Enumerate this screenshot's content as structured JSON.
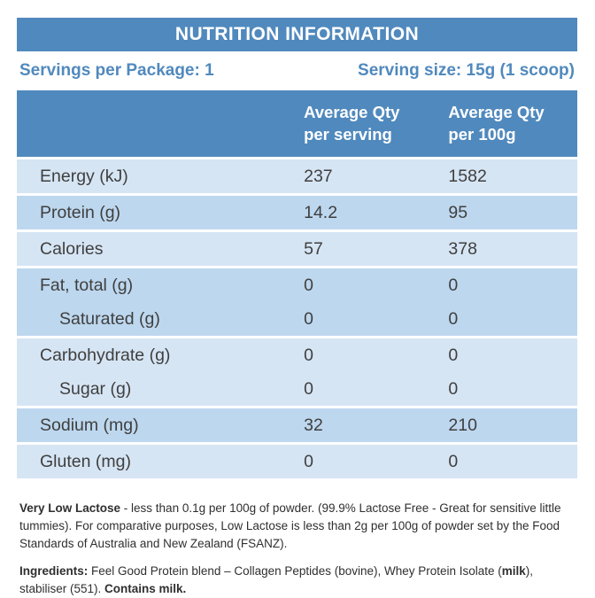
{
  "title": "NUTRITION INFORMATION",
  "serving_info": {
    "servings_per_package": "Servings per Package: 1",
    "serving_size": "Serving size: 15g (1 scoop)"
  },
  "colors": {
    "primary_blue": "#5089bd",
    "row_light": "#d6e5f4",
    "row_dark": "#bdd7ee",
    "text_dark": "#3f3f3f"
  },
  "table": {
    "column_headers": [
      {
        "line1": "Average Qty",
        "line2": "per serving"
      },
      {
        "line1": "Average Qty",
        "line2": "per 100g"
      }
    ],
    "bands": [
      {
        "shade": "light",
        "rows": [
          {
            "label": "Energy (kJ)",
            "per_serving": "237",
            "per_100g": "1582",
            "indent": false
          }
        ]
      },
      {
        "shade": "dark",
        "rows": [
          {
            "label": "Protein (g)",
            "per_serving": "14.2",
            "per_100g": "95",
            "indent": false
          }
        ]
      },
      {
        "shade": "light",
        "rows": [
          {
            "label": "Calories",
            "per_serving": "57",
            "per_100g": "378",
            "indent": false
          }
        ]
      },
      {
        "shade": "dark",
        "rows": [
          {
            "label": "Fat, total (g)",
            "per_serving": "0",
            "per_100g": "0",
            "indent": false
          },
          {
            "label": "Saturated (g)",
            "per_serving": "0",
            "per_100g": "0",
            "indent": true
          }
        ]
      },
      {
        "shade": "light",
        "rows": [
          {
            "label": "Carbohydrate (g)",
            "per_serving": "0",
            "per_100g": "0",
            "indent": false
          },
          {
            "label": "Sugar (g)",
            "per_serving": "0",
            "per_100g": "0",
            "indent": true
          }
        ]
      },
      {
        "shade": "dark",
        "rows": [
          {
            "label": "Sodium (mg)",
            "per_serving": "32",
            "per_100g": "210",
            "indent": false
          }
        ]
      },
      {
        "shade": "light",
        "rows": [
          {
            "label": "Gluten (mg)",
            "per_serving": "0",
            "per_100g": "0",
            "indent": false
          }
        ]
      }
    ]
  },
  "footnotes": [
    {
      "segments": [
        {
          "text": "Very Low Lactose",
          "bold": true
        },
        {
          "text": " - less than 0.1g per 100g of powder. (99.9% Lactose Free - Great for sensitive little tummies). For comparative purposes, Low Lactose is less than 2g per 100g of powder set by the Food Standards of Australia and New Zealand (FSANZ).",
          "bold": false
        }
      ]
    },
    {
      "segments": [
        {
          "text": "Ingredients:",
          "bold": true
        },
        {
          "text": " Feel Good Protein blend – Collagen Peptides (bovine), Whey Protein Isolate (",
          "bold": false
        },
        {
          "text": "milk",
          "bold": true
        },
        {
          "text": "), stabiliser (551). ",
          "bold": false
        },
        {
          "text": "Contains milk.",
          "bold": true
        }
      ]
    }
  ]
}
